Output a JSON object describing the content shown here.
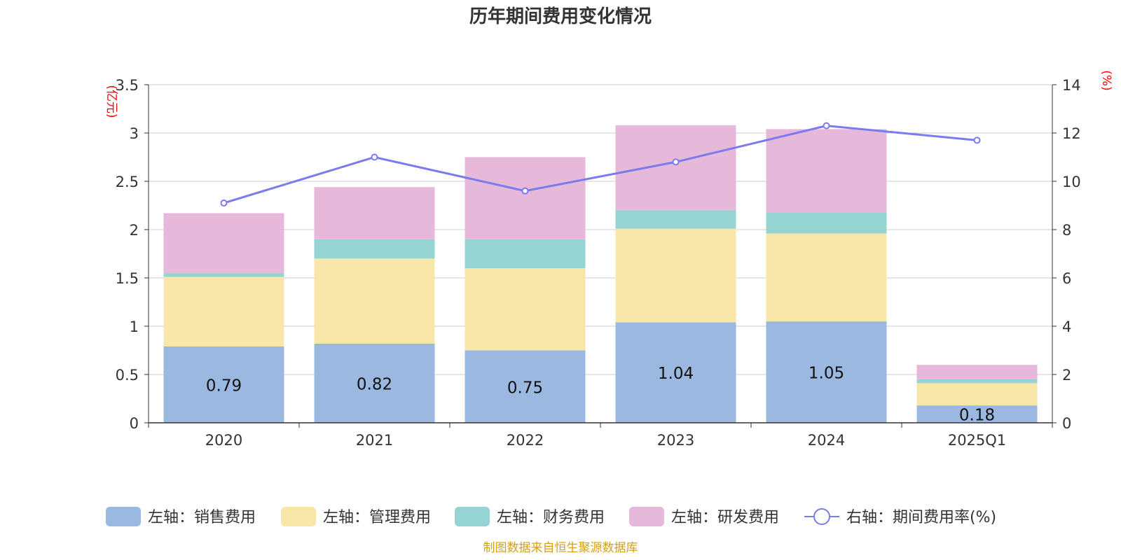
{
  "chart_data": {
    "type": "bar",
    "title": "历年期间费用变化情况",
    "categories": [
      "2020",
      "2021",
      "2022",
      "2023",
      "2024",
      "2025Q1"
    ],
    "left_axis": {
      "unit": "(亿元)",
      "ylim": [
        0,
        3.5
      ],
      "ticks": [
        "0",
        "0.5",
        "1",
        "1.5",
        "2",
        "2.5",
        "3",
        "3.5"
      ]
    },
    "right_axis": {
      "unit": "(%)",
      "ylim": [
        0,
        14
      ],
      "ticks": [
        "0",
        "2",
        "4",
        "6",
        "8",
        "10",
        "12",
        "14"
      ]
    },
    "series": [
      {
        "name": "左轴：销售费用",
        "kind": "bar",
        "axis": "left",
        "color": "#9bb8e1",
        "values": [
          0.79,
          0.82,
          0.75,
          1.04,
          1.05,
          0.18
        ],
        "labels": [
          "0.79",
          "0.82",
          "0.75",
          "1.04",
          "1.05",
          "0.18"
        ]
      },
      {
        "name": "左轴：管理费用",
        "kind": "bar",
        "axis": "left",
        "color": "#f8e7a8",
        "values": [
          0.72,
          0.88,
          0.85,
          0.97,
          0.91,
          0.23
        ]
      },
      {
        "name": "左轴：财务费用",
        "kind": "bar",
        "axis": "left",
        "color": "#96d4d4",
        "values": [
          0.04,
          0.2,
          0.3,
          0.19,
          0.22,
          0.04
        ]
      },
      {
        "name": "左轴：研发费用",
        "kind": "bar",
        "axis": "left",
        "color": "#e6b8da",
        "values": [
          0.62,
          0.54,
          0.85,
          0.88,
          0.86,
          0.15
        ]
      },
      {
        "name": "右轴：期间费用率(%)",
        "kind": "line",
        "axis": "right",
        "color": "#7b7bef",
        "values": [
          9.1,
          11.0,
          9.6,
          10.8,
          12.3,
          11.7
        ]
      }
    ],
    "grid": true,
    "legend_position": "bottom",
    "source": "制图数据来自恒生聚源数据库"
  }
}
